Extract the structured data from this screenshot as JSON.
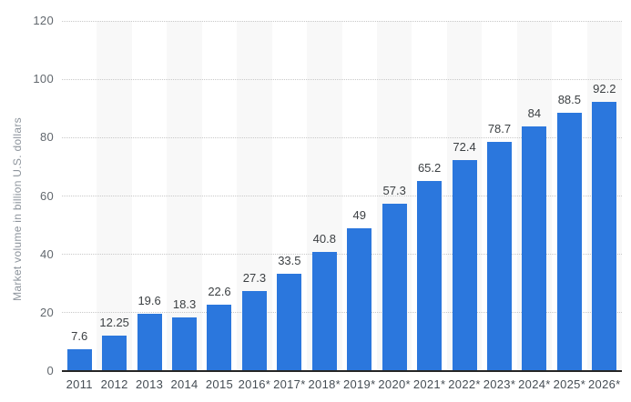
{
  "chart_data": {
    "type": "bar",
    "title": "",
    "ylabel": "Market volume in billion U.S. dollars",
    "xlabel": "",
    "categories": [
      "2011",
      "2012",
      "2013",
      "2014",
      "2015",
      "2016*",
      "2017*",
      "2018*",
      "2019*",
      "2020*",
      "2021*",
      "2022*",
      "2023*",
      "2024*",
      "2025*",
      "2026*"
    ],
    "values": [
      7.6,
      12.25,
      19.6,
      18.3,
      22.6,
      27.3,
      33.5,
      40.8,
      49,
      57.3,
      65.2,
      72.4,
      78.7,
      84,
      88.5,
      92.2
    ],
    "yticks": [
      0,
      20,
      40,
      60,
      80,
      100,
      120
    ],
    "ylim": [
      0,
      120
    ],
    "grid": "horizontal-dotted",
    "legend": "none",
    "band_pattern": "alternating-column-bands",
    "colors": {
      "bar": "#2b77dd",
      "band": "#f8f8f8",
      "gridline": "#c8c8c8",
      "axis_line": "#262626",
      "tick_label": "#62686e",
      "x_label": "#454d54",
      "value_label": "#3c4043",
      "y_axis_title": "#8d949c",
      "background": "#ffffff"
    }
  }
}
